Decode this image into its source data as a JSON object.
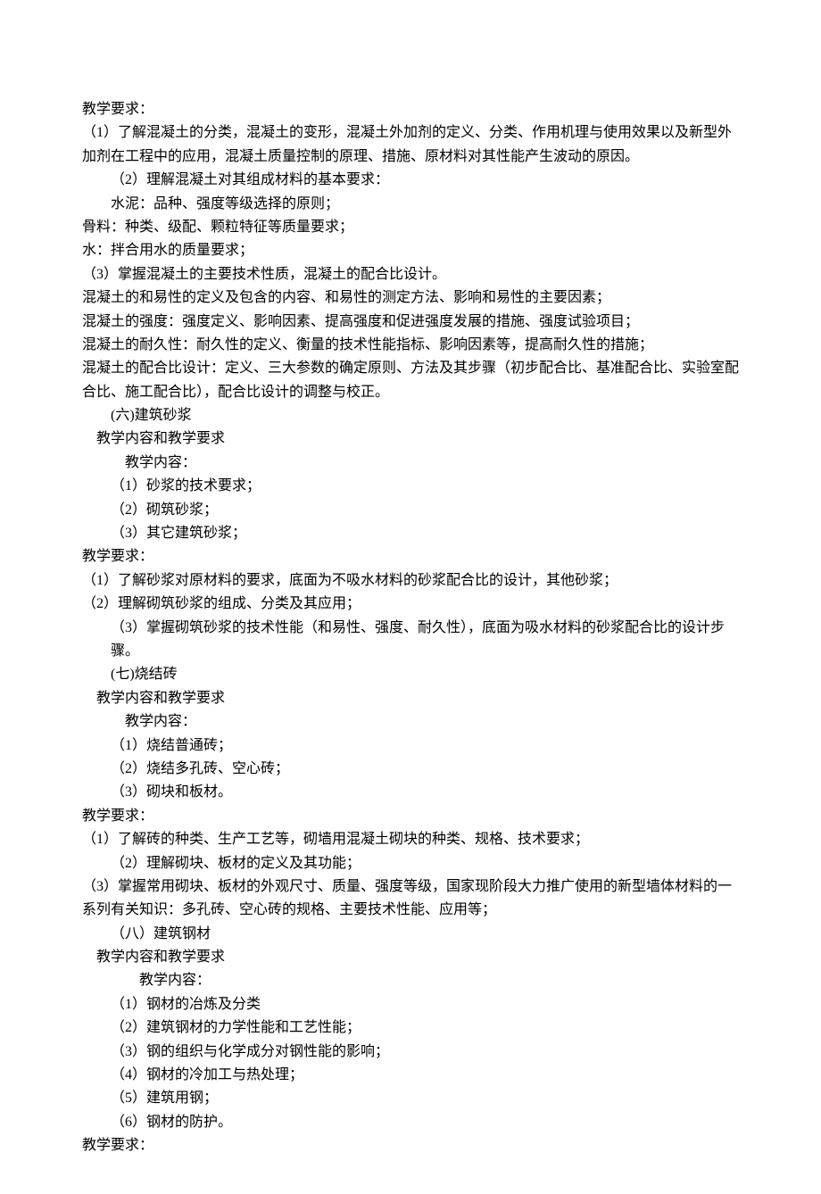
{
  "lines": [
    {
      "cls": "",
      "text": "教学要求："
    },
    {
      "cls": "",
      "text": "（1）了解混凝土的分类，混凝土的变形，混凝土外加剂的定义、分类、作用机理与使用效果以及新型外加剂在工程中的应用，混凝土质量控制的原理、措施、原材料对其性能产生波动的原因。"
    },
    {
      "cls": "indent-1",
      "text": "（2）理解混凝土对其组成材料的基本要求："
    },
    {
      "cls": "indent-1",
      "text": "水泥：品种、强度等级选择的原则；"
    },
    {
      "cls": "",
      "text": "骨料：种类、级配、颗粒特征等质量要求；"
    },
    {
      "cls": "",
      "text": "水：拌合用水的质量要求；"
    },
    {
      "cls": "",
      "text": "（3）掌握混凝土的主要技术性质，混凝土的配合比设计。"
    },
    {
      "cls": "",
      "text": "混凝土的和易性的定义及包含的内容、和易性的测定方法、影响和易性的主要因素；"
    },
    {
      "cls": "",
      "text": "混凝土的强度：强度定义、影响因素、提高强度和促进强度发展的措施、强度试验项目；"
    },
    {
      "cls": "",
      "text": "混凝土的耐久性：耐久性的定义、衡量的技术性能指标、影响因素等，提高耐久性的措施；"
    },
    {
      "cls": "",
      "text": "混凝土的配合比设计：定义、三大参数的确定原则、方法及其步骤（初步配合比、基准配合比、实验室配合比、施工配合比），配合比设计的调整与校正。"
    },
    {
      "cls": "indent-1",
      "text": "(六)建筑砂浆"
    },
    {
      "cls": "indent-half",
      "text": "教学内容和教学要求"
    },
    {
      "cls": "indent-2",
      "text": "教学内容："
    },
    {
      "cls": "indent-1",
      "text": "（1）砂浆的技术要求；"
    },
    {
      "cls": "indent-1",
      "text": "（2）砌筑砂浆；"
    },
    {
      "cls": "indent-1",
      "text": "（3）其它建筑砂浆；"
    },
    {
      "cls": "",
      "text": "教学要求："
    },
    {
      "cls": "",
      "text": "（1）了解砂浆对原材料的要求，底面为不吸水材料的砂浆配合比的设计，其他砂浆；"
    },
    {
      "cls": "",
      "text": "（2）理解砌筑砂浆的组成、分类及其应用；"
    },
    {
      "cls": "indent-1",
      "text": "（3）掌握砌筑砂浆的技术性能（和易性、强度、耐久性），底面为吸水材料的砂浆配合比的设计步骤。"
    },
    {
      "cls": "indent-1",
      "text": "(七)烧结砖"
    },
    {
      "cls": "indent-half",
      "text": "教学内容和教学要求"
    },
    {
      "cls": "indent-2",
      "text": "教学内容："
    },
    {
      "cls": "indent-1",
      "text": "（1）烧结普通砖；"
    },
    {
      "cls": "indent-1",
      "text": "（2）烧结多孔砖、空心砖；"
    },
    {
      "cls": "indent-1",
      "text": "（3）砌块和板材。"
    },
    {
      "cls": "",
      "text": "教学要求："
    },
    {
      "cls": "",
      "text": "（1）了解砖的种类、生产工艺等，砌墙用混凝土砌块的种类、规格、技术要求；"
    },
    {
      "cls": "indent-1",
      "text": "（2）理解砌块、板材的定义及其功能；"
    },
    {
      "cls": "",
      "text": "（3）掌握常用砌块、板材的外观尺寸、质量、强度等级，国家现阶段大力推广使用的新型墙体材料的一系列有关知识：多孔砖、空心砖的规格、主要技术性能、应用等；"
    },
    {
      "cls": "indent-1",
      "text": "（八）建筑钢材"
    },
    {
      "cls": "indent-half",
      "text": "教学内容和教学要求"
    },
    {
      "cls": "indent-3",
      "text": "教学内容："
    },
    {
      "cls": "indent-1",
      "text": "（1）钢材的冶炼及分类"
    },
    {
      "cls": "indent-1",
      "text": "（2）建筑钢材的力学性能和工艺性能；"
    },
    {
      "cls": "indent-1",
      "text": "（3）钢的组织与化学成分对钢性能的影响；"
    },
    {
      "cls": "indent-1",
      "text": "（4）钢材的冷加工与热处理；"
    },
    {
      "cls": "indent-1",
      "text": "（5）建筑用钢；"
    },
    {
      "cls": "indent-1",
      "text": "（6）钢材的防护。"
    },
    {
      "cls": "",
      "text": "教学要求："
    }
  ]
}
